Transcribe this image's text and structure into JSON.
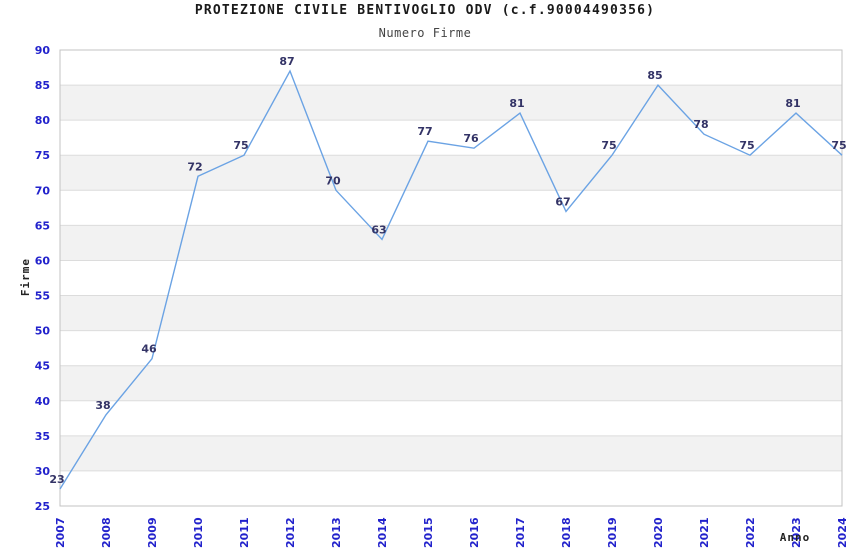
{
  "chart_data": {
    "type": "line",
    "title": "PROTEZIONE CIVILE BENTIVOGLIO ODV (c.f.90004490356)",
    "subtitle": "Numero Firme",
    "xlabel": "Anno",
    "ylabel": "Firme",
    "categories": [
      "2007",
      "2008",
      "2009",
      "2010",
      "2011",
      "2012",
      "2013",
      "2014",
      "2015",
      "2016",
      "2017",
      "2018",
      "2019",
      "2020",
      "2021",
      "2022",
      "2023",
      "2024"
    ],
    "values": [
      23,
      38,
      46,
      72,
      75,
      87,
      70,
      63,
      77,
      76,
      81,
      67,
      75,
      85,
      78,
      75,
      81,
      75
    ],
    "ylim": [
      25,
      90
    ],
    "yticks": [
      25,
      30,
      35,
      40,
      45,
      50,
      55,
      60,
      65,
      70,
      75,
      80,
      85,
      90
    ],
    "xtick_rotation_deg": 90,
    "grid": "horizontal",
    "bands": "alternating-gray",
    "legend": "none",
    "point_labels_visible": true,
    "colors": {
      "line": "#6ba3e4",
      "point_label": "#333366",
      "tick_label": "#2222cc",
      "band": "#f2f2f2",
      "gridline": "#dcdcdc",
      "plot_border": "#c3c3c3",
      "title": "#1a1a1a",
      "subtitle": "#444444",
      "axis_title": "#222222",
      "background": "#ffffff"
    }
  }
}
